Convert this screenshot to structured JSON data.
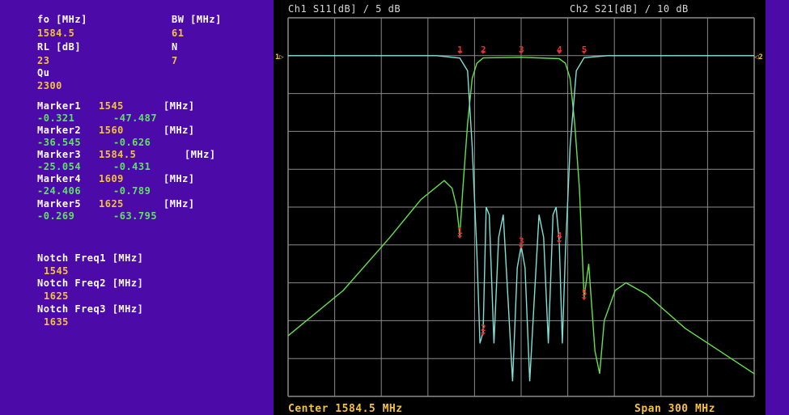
{
  "left_panel": {
    "fo_label": "fo [MHz]",
    "fo_value": "1584.5",
    "bw_label": "BW [MHz]",
    "bw_value": "61",
    "rl_label": "RL [dB]",
    "rl_value": "23",
    "n_label": "N",
    "n_value": "7",
    "qu_label": "Qu",
    "qu_value": "2300",
    "markers": [
      {
        "label": "Marker1",
        "freq": "1545",
        "unit": "[MHz]",
        "s11": "-0.321",
        "s21": "-47.487"
      },
      {
        "label": "Marker2",
        "freq": "1560",
        "unit": "[MHz]",
        "s11": "-36.545",
        "s21": "-0.626"
      },
      {
        "label": "Marker3",
        "freq": "1584.5",
        "unit": "[MHz]",
        "s11": "-25.054",
        "s21": "-0.431"
      },
      {
        "label": "Marker4",
        "freq": "1609",
        "unit": "[MHz]",
        "s11": "-24.406",
        "s21": "-0.789"
      },
      {
        "label": "Marker5",
        "freq": "1625",
        "unit": "[MHz]",
        "s11": "-0.269",
        "s21": "-63.795"
      }
    ],
    "notches": [
      {
        "label": "Notch Freq1 [MHz]",
        "value": "1545"
      },
      {
        "label": "Notch Freq2 [MHz]",
        "value": "1625"
      },
      {
        "label": "Notch Freq3 [MHz]",
        "value": "1635"
      }
    ]
  },
  "plot": {
    "ch1_label": "Ch1 S11[dB] / 5 dB",
    "ch2_label": "Ch2 S21[dB] / 10 dB",
    "center_label": "Center 1584.5 MHz",
    "span_label": "Span 300 MHz",
    "ref1_marker": "1▷",
    "ref2_marker": "◁2",
    "marker_numbers": [
      "1",
      "2",
      "3",
      "4",
      "5"
    ]
  },
  "colors": {
    "panel_bg": "#4c0aa8",
    "plot_bg": "#000000",
    "grid": "#8a8a8a",
    "s11_trace": "#7fe0d6",
    "s21_trace": "#66e04a",
    "marker": "#e83030",
    "label_white": "#ffffff",
    "label_orange": "#f5c23d",
    "label_green": "#5fe35f"
  },
  "chart_data": {
    "type": "line",
    "title": "",
    "xlabel": "",
    "x_center_mhz": 1584.5,
    "x_span_mhz": 300,
    "xlim": [
      1434.5,
      1734.5
    ],
    "grid": true,
    "series": [
      {
        "name": "Ch1 S11[dB]",
        "scale_db_per_div": 5,
        "ylim": [
          -50,
          0
        ],
        "points": [
          [
            1434.5,
            0
          ],
          [
            1530,
            0
          ],
          [
            1545,
            -0.32
          ],
          [
            1550,
            -2
          ],
          [
            1553,
            -12
          ],
          [
            1556,
            -26
          ],
          [
            1558,
            -38
          ],
          [
            1560,
            -36.5
          ],
          [
            1562,
            -20
          ],
          [
            1564,
            -21
          ],
          [
            1567,
            -38
          ],
          [
            1570,
            -24
          ],
          [
            1573,
            -21
          ],
          [
            1576,
            -32
          ],
          [
            1579,
            -43
          ],
          [
            1582,
            -28
          ],
          [
            1584.5,
            -25.1
          ],
          [
            1587,
            -28
          ],
          [
            1590,
            -43
          ],
          [
            1593,
            -32
          ],
          [
            1596,
            -21
          ],
          [
            1599,
            -24
          ],
          [
            1602,
            -38
          ],
          [
            1605,
            -21
          ],
          [
            1607,
            -20
          ],
          [
            1609,
            -24.4
          ],
          [
            1611,
            -38
          ],
          [
            1613,
            -26
          ],
          [
            1616,
            -12
          ],
          [
            1620,
            -2
          ],
          [
            1625,
            -0.27
          ],
          [
            1640,
            0
          ],
          [
            1734.5,
            0
          ]
        ]
      },
      {
        "name": "Ch2 S21[dB]",
        "scale_db_per_div": 10,
        "ylim": [
          -100,
          0
        ],
        "points": [
          [
            1434.5,
            -74
          ],
          [
            1470,
            -62
          ],
          [
            1500,
            -48
          ],
          [
            1520,
            -38
          ],
          [
            1535,
            -33
          ],
          [
            1540,
            -35
          ],
          [
            1543,
            -40
          ],
          [
            1545,
            -47.5
          ],
          [
            1547,
            -35
          ],
          [
            1550,
            -18
          ],
          [
            1553,
            -6
          ],
          [
            1556,
            -2
          ],
          [
            1560,
            -0.6
          ],
          [
            1584.5,
            -0.43
          ],
          [
            1609,
            -0.79
          ],
          [
            1613,
            -2
          ],
          [
            1616,
            -6
          ],
          [
            1619,
            -18
          ],
          [
            1622,
            -35
          ],
          [
            1625,
            -63.8
          ],
          [
            1628,
            -55
          ],
          [
            1632,
            -78
          ],
          [
            1635,
            -84
          ],
          [
            1638,
            -70
          ],
          [
            1645,
            -62
          ],
          [
            1652,
            -60
          ],
          [
            1665,
            -63
          ],
          [
            1690,
            -72
          ],
          [
            1734.5,
            -84
          ]
        ]
      }
    ],
    "markers": [
      {
        "id": 1,
        "x": 1545,
        "s11": -0.321,
        "s21": -47.487
      },
      {
        "id": 2,
        "x": 1560,
        "s11": -36.545,
        "s21": -0.626
      },
      {
        "id": 3,
        "x": 1584.5,
        "s11": -25.054,
        "s21": -0.431
      },
      {
        "id": 4,
        "x": 1609,
        "s11": -24.406,
        "s21": -0.789
      },
      {
        "id": 5,
        "x": 1625,
        "s11": -0.269,
        "s21": -63.795
      }
    ]
  }
}
